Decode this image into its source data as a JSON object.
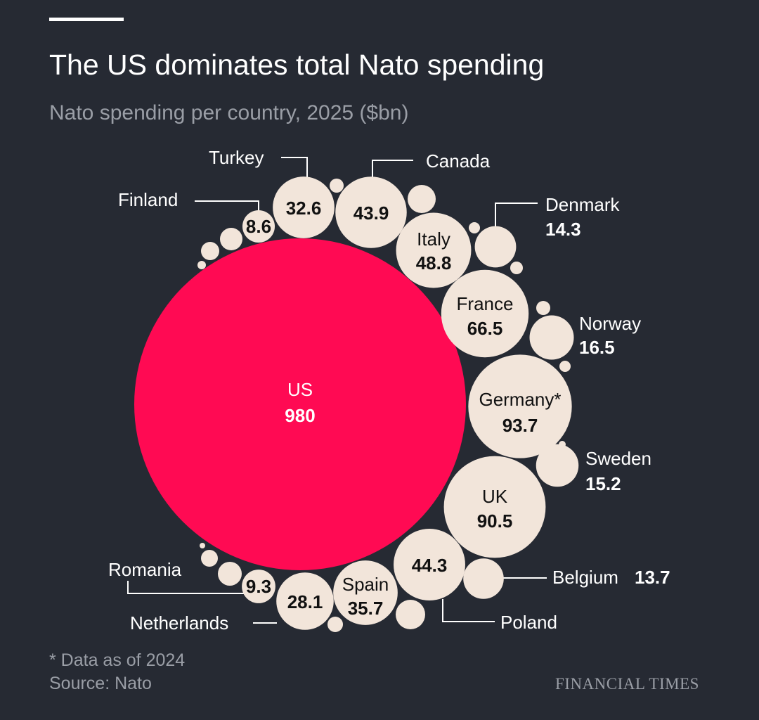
{
  "header": {
    "title": "The US dominates total Nato spending",
    "subtitle": "Nato spending per country, 2025 ($bn)"
  },
  "footer": {
    "note": "* Data as of 2024",
    "source": "Source: Nato",
    "logo": "FINANCIAL TIMES"
  },
  "colors": {
    "background": "#262a33",
    "highlight": "#ff0a53",
    "bubble": "#f2e5da"
  },
  "chart_data": {
    "type": "bubble",
    "title": "The US dominates total Nato spending",
    "subtitle": "Nato spending per country, 2025 ($bn)",
    "unit": "$bn",
    "items": [
      {
        "country": "US",
        "value": 980,
        "display": "980",
        "highlight": true
      },
      {
        "country": "Germany*",
        "value": 93.7,
        "display": "93.7"
      },
      {
        "country": "UK",
        "value": 90.5,
        "display": "90.5"
      },
      {
        "country": "France",
        "value": 66.5,
        "display": "66.5"
      },
      {
        "country": "Italy",
        "value": 48.8,
        "display": "48.8"
      },
      {
        "country": "Poland",
        "value": 44.3,
        "display": "44.3"
      },
      {
        "country": "Canada",
        "value": 43.9,
        "display": "43.9"
      },
      {
        "country": "Spain",
        "value": 35.7,
        "display": "35.7"
      },
      {
        "country": "Turkey",
        "value": 32.6,
        "display": "32.6"
      },
      {
        "country": "Netherlands",
        "value": 28.1,
        "display": "28.1"
      },
      {
        "country": "Norway",
        "value": 16.5,
        "display": "16.5"
      },
      {
        "country": "Sweden",
        "value": 15.2,
        "display": "15.2"
      },
      {
        "country": "Denmark",
        "value": 14.3,
        "display": "14.3"
      },
      {
        "country": "Belgium",
        "value": 13.7,
        "display": "13.7"
      },
      {
        "country": "Romania",
        "value": 9.3,
        "display": "9.3"
      },
      {
        "country": "Finland",
        "value": 8.6,
        "display": "8.6"
      }
    ]
  }
}
